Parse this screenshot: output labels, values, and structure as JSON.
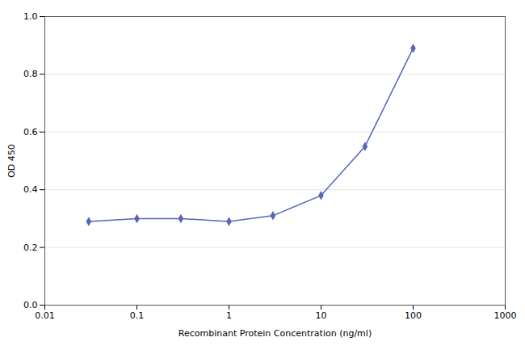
{
  "chart_data": {
    "type": "line",
    "xlabel": "Recombinant Protein Concentration (ng/ml)",
    "ylabel": "OD 450",
    "x": [
      0.03,
      0.1,
      0.3,
      1.0,
      3.0,
      10.0,
      30.0,
      100.0
    ],
    "values": [
      0.29,
      0.3,
      0.3,
      0.29,
      0.31,
      0.38,
      0.55,
      0.89
    ],
    "color": "#5566bb",
    "marker": "diamond",
    "log": "x",
    "xlim": [
      0.01,
      1000
    ],
    "xticks": [
      0.01,
      0.1,
      1,
      10,
      100,
      1000
    ],
    "ylim": [
      0.0,
      1.0
    ],
    "yticks": [
      {
        "value": 0.0,
        "label": "0.0"
      },
      0.2,
      0.4,
      0.6,
      0.8,
      {
        "value": 1.0,
        "label": "1.0"
      }
    ],
    "grid": "y"
  }
}
